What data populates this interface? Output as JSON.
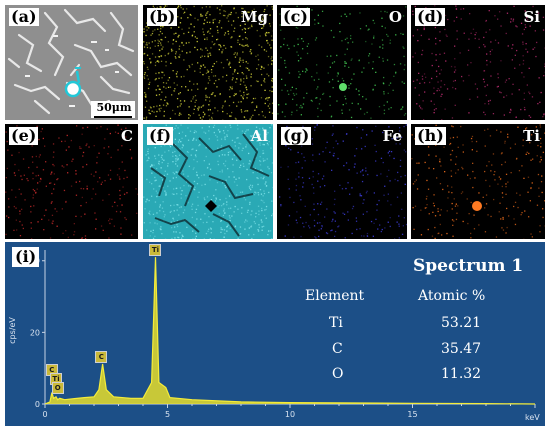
{
  "panels": [
    {
      "tag": "(a)",
      "element": "",
      "scalebar": "50μm"
    },
    {
      "tag": "(b)",
      "element": "Mg",
      "color": "#d4d43a"
    },
    {
      "tag": "(c)",
      "element": "O",
      "color": "#3fbf4f"
    },
    {
      "tag": "(d)",
      "element": "Si",
      "color": "#b02a6a"
    },
    {
      "tag": "(e)",
      "element": "C",
      "color": "#c22a2a"
    },
    {
      "tag": "(f)",
      "element": "Al",
      "color": "#2fb7c2"
    },
    {
      "tag": "(g)",
      "element": "Fe",
      "color": "#3a3ad0"
    },
    {
      "tag": "(h)",
      "element": "Ti",
      "color": "#e0661a"
    }
  ],
  "spectrum": {
    "tag": "(i)",
    "title": "Spectrum 1",
    "ylabel": "cps/eV",
    "xlabel": "keV",
    "header_element": "Element",
    "header_atomic": "Atomic %",
    "rows": [
      {
        "element": "Ti",
        "atomic": "53.21"
      },
      {
        "element": "C",
        "atomic": "35.47"
      },
      {
        "element": "O",
        "atomic": "11.32"
      }
    ]
  },
  "chart_data": {
    "type": "line",
    "xlabel": "keV",
    "ylabel": "cps/eV",
    "xlim": [
      0,
      20
    ],
    "ylim": [
      0,
      43
    ],
    "x_ticks": [
      0,
      5,
      10,
      15
    ],
    "y_ticks": [
      0,
      20,
      40
    ],
    "series": [
      {
        "values_x": [
          0,
          0.2,
          0.28,
          0.35,
          0.45,
          0.52,
          0.6,
          0.8,
          1.2,
          1.6,
          2.0,
          2.2,
          2.35,
          2.5,
          2.8,
          3.5,
          4.0,
          4.35,
          4.51,
          4.65,
          4.93,
          5.1,
          6.0,
          8.0,
          10.0,
          12.0,
          15.0,
          18.0,
          20.0
        ],
        "values_y": [
          0,
          0.6,
          3.2,
          1.6,
          2.0,
          1.2,
          1.6,
          1.2,
          1.5,
          1.8,
          2.0,
          4.0,
          11.2,
          4.0,
          2.0,
          1.6,
          1.6,
          6.0,
          41.0,
          6.0,
          4.6,
          1.8,
          1.2,
          0.6,
          0.4,
          0.3,
          0.2,
          0.1,
          0.0
        ]
      }
    ],
    "peak_labels": [
      {
        "label": "Ti",
        "x": 4.51,
        "y": 41.0
      },
      {
        "label": "C",
        "x": 2.3,
        "y": 11.2
      },
      {
        "label": "C",
        "x": 0.28,
        "y": 7.5
      },
      {
        "label": "Ti",
        "x": 0.45,
        "y": 5.0
      },
      {
        "label": "O",
        "x": 0.52,
        "y": 2.6
      }
    ]
  }
}
